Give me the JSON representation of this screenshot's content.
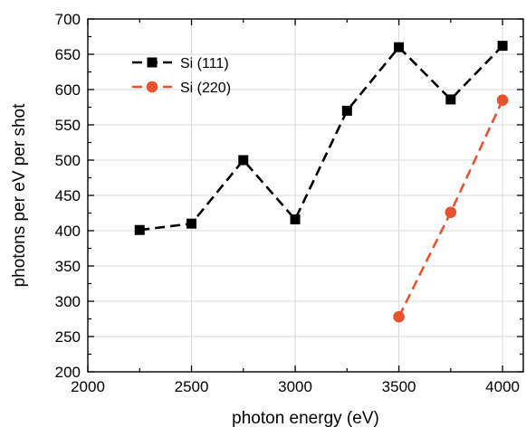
{
  "chart_data": {
    "type": "line",
    "xlabel": "photon energy (eV)",
    "ylabel": "photons per eV per shot",
    "xlim": [
      2000,
      4100
    ],
    "ylim": [
      200,
      700
    ],
    "xticks": [
      2000,
      2500,
      3000,
      3500,
      4000
    ],
    "yticks": [
      200,
      250,
      300,
      350,
      400,
      450,
      500,
      550,
      600,
      650,
      700
    ],
    "grid": true,
    "legend_position": "top-left",
    "series": [
      {
        "name": "Si (111)",
        "color": "#000000",
        "marker": "square",
        "line_style": "dashed",
        "x": [
          2250,
          2500,
          2750,
          3000,
          3250,
          3500,
          3750,
          4000
        ],
        "y": [
          401,
          410,
          500,
          416,
          570,
          660,
          586,
          662
        ]
      },
      {
        "name": "Si (220)",
        "color": "#e8532e",
        "marker": "circle",
        "line_style": "dashed",
        "x": [
          3500,
          3750,
          4000
        ],
        "y": [
          278,
          426,
          585
        ]
      }
    ]
  }
}
